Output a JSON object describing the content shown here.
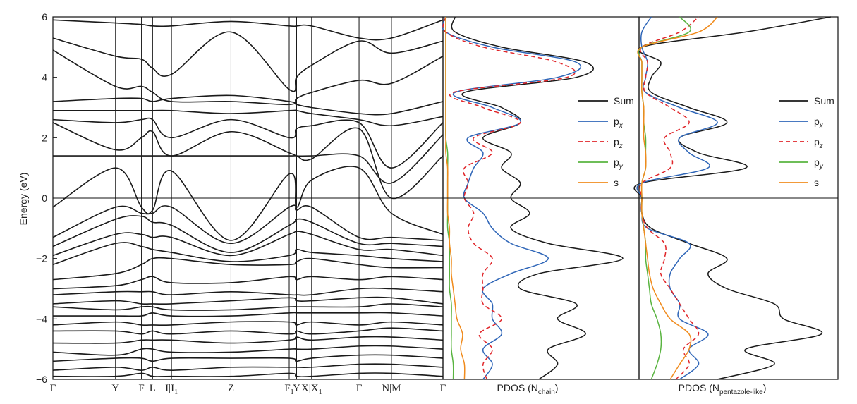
{
  "chart_data": [
    {
      "type": "line",
      "title": "",
      "ylabel": "Energy (eV)",
      "ylim": [
        -6,
        6
      ],
      "yticks": [
        "6",
        "4",
        "2",
        "0",
        "−2",
        "−4",
        "−6"
      ],
      "kpoints": [
        {
          "main": "Γ",
          "sub": ""
        },
        {
          "main": "Y",
          "sub": ""
        },
        {
          "main": "F",
          "sub": ""
        },
        {
          "main": "L",
          "sub": ""
        },
        {
          "main": "I|I",
          "sub": "1"
        },
        {
          "main": "Z",
          "sub": ""
        },
        {
          "main": "F",
          "sub": "1"
        },
        {
          "main": "Y",
          "sub": ""
        },
        {
          "main": "X|X",
          "sub": "1"
        },
        {
          "main": "Γ",
          "sub": ""
        },
        {
          "main": "N|M",
          "sub": ""
        },
        {
          "main": "Γ",
          "sub": ""
        }
      ],
      "kpos": [
        0,
        0.1605,
        0.2271,
        0.2556,
        0.304,
        0.4565,
        0.6058,
        0.6247,
        0.6633,
        0.7849,
        0.8679,
        1.0
      ],
      "bands_approx": [
        [
          5.9,
          5.8,
          5.75,
          5.7,
          5.7,
          5.85,
          5.7,
          5.7,
          5.7,
          5.3,
          5.3,
          5.9
        ],
        [
          5.3,
          4.7,
          4.6,
          4.3,
          4.1,
          5.5,
          3.6,
          4.0,
          4.4,
          5.2,
          4.8,
          5.2
        ],
        [
          4.9,
          3.7,
          3.7,
          3.5,
          3.2,
          3.2,
          3.1,
          3.3,
          3.5,
          3.9,
          3.8,
          4.7
        ],
        [
          3.2,
          3.3,
          3.3,
          3.2,
          3.3,
          3.4,
          3.2,
          3.1,
          3.0,
          2.8,
          2.8,
          3.2
        ],
        [
          2.9,
          2.9,
          2.9,
          2.9,
          2.9,
          2.8,
          2.9,
          2.9,
          2.8,
          2.6,
          2.4,
          2.7
        ],
        [
          2.6,
          2.5,
          2.6,
          2.6,
          2.0,
          2.6,
          2.0,
          2.3,
          2.4,
          2.5,
          1.0,
          2.5
        ],
        [
          2.5,
          1.6,
          2.0,
          2.2,
          1.4,
          2.2,
          1.5,
          1.4,
          1.4,
          1.4,
          0.5,
          2.1
        ],
        [
          1.4,
          1.4,
          1.4,
          1.4,
          1.4,
          1.4,
          1.4,
          1.4,
          1.3,
          2.3,
          0.0,
          1.4
        ],
        [
          -0.3,
          1.0,
          -0.3,
          -0.4,
          0.9,
          -1.4,
          0.8,
          -0.3,
          0.6,
          1.0,
          -0.5,
          -1.2
        ],
        [
          -1.3,
          -0.3,
          -0.5,
          -0.5,
          -0.3,
          -1.5,
          -0.3,
          -0.4,
          -0.3,
          -1.3,
          -1.3,
          -1.4
        ],
        [
          -1.6,
          -0.7,
          -0.6,
          -0.8,
          -0.9,
          -1.8,
          -0.9,
          -0.7,
          -0.8,
          -1.5,
          -1.5,
          -1.6
        ],
        [
          -1.9,
          -1.2,
          -1.2,
          -1.3,
          -1.3,
          -1.9,
          -1.2,
          -1.1,
          -1.2,
          -1.7,
          -1.7,
          -1.9
        ],
        [
          -2.2,
          -1.5,
          -1.6,
          -1.7,
          -1.8,
          -2.1,
          -1.9,
          -1.7,
          -1.8,
          -1.9,
          -2.0,
          -2.1
        ],
        [
          -2.7,
          -2.5,
          -2.2,
          -2.0,
          -2.0,
          -2.2,
          -2.2,
          -2.1,
          -2.0,
          -2.2,
          -2.3,
          -2.3
        ],
        [
          -3.0,
          -2.9,
          -2.7,
          -2.6,
          -2.8,
          -2.8,
          -2.6,
          -2.7,
          -2.6,
          -2.7,
          -2.6,
          -2.7
        ],
        [
          -3.2,
          -3.1,
          -3.1,
          -3.1,
          -3.2,
          -3.1,
          -3.2,
          -3.2,
          -3.2,
          -3.0,
          -3.0,
          -3.1
        ],
        [
          -3.5,
          -3.4,
          -3.5,
          -3.5,
          -3.5,
          -3.4,
          -3.3,
          -3.4,
          -3.4,
          -3.3,
          -3.3,
          -3.5
        ],
        [
          -3.6,
          -3.7,
          -3.6,
          -3.6,
          -3.7,
          -3.7,
          -3.6,
          -3.6,
          -3.6,
          -3.6,
          -3.5,
          -3.6
        ],
        [
          -3.9,
          -3.9,
          -3.9,
          -3.8,
          -3.9,
          -3.9,
          -3.8,
          -3.8,
          -3.8,
          -3.8,
          -3.8,
          -3.9
        ],
        [
          -4.2,
          -4.1,
          -4.2,
          -4.2,
          -4.2,
          -4.1,
          -4.1,
          -4.2,
          -4.1,
          -4.2,
          -4.1,
          -4.2
        ],
        [
          -4.4,
          -4.4,
          -4.5,
          -4.4,
          -4.5,
          -4.4,
          -4.5,
          -4.4,
          -4.5,
          -4.4,
          -4.3,
          -4.4
        ],
        [
          -4.8,
          -4.8,
          -4.7,
          -4.7,
          -4.7,
          -4.8,
          -4.7,
          -4.6,
          -4.7,
          -4.6,
          -4.6,
          -4.7
        ],
        [
          -5.1,
          -5.2,
          -5.0,
          -5.0,
          -5.1,
          -5.1,
          -5.0,
          -5.0,
          -5.0,
          -4.9,
          -4.9,
          -5.0
        ],
        [
          -5.4,
          -5.3,
          -5.3,
          -5.4,
          -5.3,
          -5.3,
          -5.3,
          -5.4,
          -5.3,
          -5.2,
          -5.2,
          -5.3
        ],
        [
          -5.7,
          -5.6,
          -5.7,
          -5.6,
          -5.7,
          -5.6,
          -5.6,
          -5.6,
          -5.6,
          -5.5,
          -5.5,
          -5.6
        ],
        [
          -5.9,
          -5.9,
          -5.8,
          -5.9,
          -5.9,
          -5.9,
          -5.8,
          -5.9,
          -5.9,
          -5.8,
          -5.8,
          -5.9
        ]
      ]
    },
    {
      "type": "line",
      "title": "PDOS (N",
      "title_sub": "chain",
      "title_end": ")",
      "ylim": [
        -6,
        6
      ],
      "legend": {
        "placement": "right",
        "entries": [
          {
            "main": "Sum",
            "sub": ""
          },
          {
            "main": "p",
            "sub": "x"
          },
          {
            "main": "p",
            "sub": "z"
          },
          {
            "main": "p",
            "sub": "y"
          },
          {
            "main": "s",
            "sub": ""
          }
        ]
      },
      "energy": [
        -6,
        -5.5,
        -5,
        -4.5,
        -4,
        -3.5,
        -3,
        -2.5,
        -2,
        -1.5,
        -1,
        -0.5,
        0,
        0.5,
        1,
        1.5,
        2,
        2.5,
        3,
        3.5,
        4,
        4.5,
        5,
        5.5,
        6
      ],
      "series": [
        {
          "name": "Sum",
          "color": "#1a1a1a",
          "dash": "solid",
          "values": [
            0.5,
            0.6,
            0.55,
            0.75,
            0.6,
            0.7,
            0.4,
            0.5,
            0.95,
            0.55,
            0.35,
            0.45,
            0.35,
            0.4,
            0.3,
            0.35,
            0.2,
            0.4,
            0.3,
            0.1,
            0.7,
            0.75,
            0.3,
            0.05,
            0.05
          ]
        },
        {
          "name": "px",
          "color": "#2f66b8",
          "dash": "solid",
          "values": [
            0.2,
            0.25,
            0.2,
            0.3,
            0.25,
            0.25,
            0.2,
            0.35,
            0.55,
            0.35,
            0.25,
            0.2,
            0.1,
            0.12,
            0.15,
            0.2,
            0.12,
            0.4,
            0.25,
            0.05,
            0.6,
            0.7,
            0.25,
            0.0,
            0.0
          ]
        },
        {
          "name": "pz",
          "color": "#e0262a",
          "dash": "dashed",
          "values": [
            0.22,
            0.2,
            0.25,
            0.18,
            0.3,
            0.2,
            0.2,
            0.2,
            0.25,
            0.15,
            0.12,
            0.15,
            0.1,
            0.12,
            0.1,
            0.25,
            0.15,
            0.4,
            0.2,
            0.04,
            0.65,
            0.6,
            0.2,
            0.0,
            0.0
          ]
        },
        {
          "name": "py",
          "color": "#59b440",
          "dash": "solid",
          "values": [
            0.04,
            0.04,
            0.03,
            0.03,
            0.03,
            0.03,
            0.02,
            0.02,
            0.02,
            0.02,
            0.01,
            0.01,
            0.01,
            0.01,
            0.01,
            0.01,
            0.0,
            0.0,
            0.0,
            0.0,
            0.0,
            0.0,
            0.0,
            0.0,
            0.0
          ]
        },
        {
          "name": "s",
          "color": "#f08b1d",
          "dash": "solid",
          "values": [
            0.1,
            0.1,
            0.08,
            0.09,
            0.06,
            0.05,
            0.04,
            0.03,
            0.03,
            0.02,
            0.02,
            0.01,
            0.01,
            0.01,
            0.01,
            0.0,
            0.0,
            0.0,
            0.0,
            0.0,
            0.0,
            0.0,
            0.0,
            0.0,
            0.0
          ]
        }
      ]
    },
    {
      "type": "line",
      "title": "PDOS (N",
      "title_sub": "pentazole-like",
      "title_end": ")",
      "ylim": [
        -6,
        6
      ],
      "legend": {
        "placement": "right",
        "entries": [
          {
            "main": "Sum",
            "sub": ""
          },
          {
            "main": "p",
            "sub": "x"
          },
          {
            "main": "p",
            "sub": "z"
          },
          {
            "main": "p",
            "sub": "y"
          },
          {
            "main": "s",
            "sub": ""
          }
        ]
      },
      "energy": [
        -6,
        -5.5,
        -5,
        -4.5,
        -4,
        -3.5,
        -3,
        -2.5,
        -2,
        -1.5,
        -1,
        -0.5,
        0,
        0.5,
        1,
        1.5,
        2,
        2.5,
        3,
        3.5,
        4,
        4.5,
        5,
        5.5,
        6
      ],
      "series": [
        {
          "name": "Sum",
          "color": "#1a1a1a",
          "dash": "solid",
          "values": [
            0.4,
            0.7,
            0.55,
            0.95,
            0.75,
            0.7,
            0.45,
            0.35,
            0.45,
            0.25,
            0.05,
            0.0,
            0.0,
            0.0,
            0.55,
            0.3,
            0.2,
            0.45,
            0.25,
            0.05,
            0.05,
            0.1,
            0.0,
            0.55,
            1.0
          ]
        },
        {
          "name": "px",
          "color": "#2f66b8",
          "dash": "solid",
          "values": [
            0.2,
            0.3,
            0.25,
            0.35,
            0.2,
            0.2,
            0.15,
            0.15,
            0.2,
            0.25,
            0.03,
            0.0,
            0.0,
            0.0,
            0.35,
            0.25,
            0.2,
            0.4,
            0.2,
            0.02,
            0.02,
            0.03,
            0.0,
            0.0,
            0.05
          ]
        },
        {
          "name": "pz",
          "color": "#e0262a",
          "dash": "dashed",
          "values": [
            0.18,
            0.25,
            0.22,
            0.3,
            0.25,
            0.2,
            0.15,
            0.1,
            0.12,
            0.12,
            0.03,
            0.0,
            0.0,
            0.0,
            0.15,
            0.15,
            0.12,
            0.25,
            0.15,
            0.02,
            0.02,
            0.03,
            0.0,
            0.2,
            0.3
          ]
        },
        {
          "name": "py",
          "color": "#59b440",
          "dash": "solid",
          "values": [
            0.05,
            0.08,
            0.1,
            0.1,
            0.08,
            0.05,
            0.04,
            0.03,
            0.02,
            0.02,
            0.01,
            0.0,
            0.0,
            0.0,
            0.02,
            0.02,
            0.02,
            0.01,
            0.01,
            0.0,
            0.0,
            0.0,
            0.0,
            0.25,
            0.2
          ]
        },
        {
          "name": "s",
          "color": "#f08b1d",
          "dash": "solid",
          "values": [
            0.15,
            0.2,
            0.25,
            0.25,
            0.15,
            0.1,
            0.06,
            0.04,
            0.03,
            0.02,
            0.01,
            0.0,
            0.0,
            0.0,
            0.02,
            0.02,
            0.01,
            0.01,
            0.01,
            0.0,
            0.0,
            0.0,
            0.0,
            0.3,
            0.4
          ]
        }
      ]
    }
  ]
}
